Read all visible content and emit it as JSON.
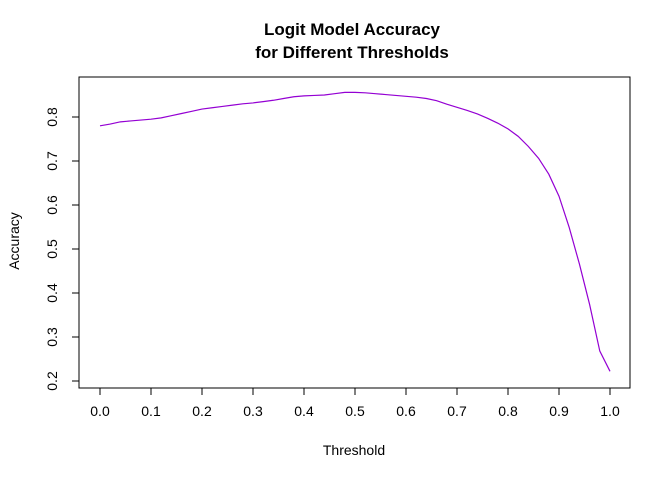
{
  "chart_data": {
    "type": "line",
    "title": "Logit Model Accuracy",
    "subtitle": "for Different Thresholds",
    "xlabel": "Threshold",
    "ylabel": "Accuracy",
    "xlim": [
      0.0,
      1.0
    ],
    "ylim": [
      0.2,
      0.86
    ],
    "x_ticks": [
      "0.0",
      "0.1",
      "0.2",
      "0.3",
      "0.4",
      "0.5",
      "0.6",
      "0.7",
      "0.8",
      "0.9",
      "1.0"
    ],
    "y_ticks": [
      "0.2",
      "0.3",
      "0.4",
      "0.5",
      "0.6",
      "0.7",
      "0.8"
    ],
    "grid": false,
    "line_color": "#9400D3",
    "series": [
      {
        "x": [
          0.0,
          0.02,
          0.04,
          0.06,
          0.08,
          0.1,
          0.12,
          0.14,
          0.16,
          0.18,
          0.2,
          0.22,
          0.24,
          0.26,
          0.28,
          0.3,
          0.32,
          0.34,
          0.36,
          0.38,
          0.4,
          0.42,
          0.44,
          0.46,
          0.48,
          0.5,
          0.52,
          0.54,
          0.56,
          0.58,
          0.6,
          0.62,
          0.64,
          0.66,
          0.68,
          0.7,
          0.72,
          0.74,
          0.76,
          0.78,
          0.8,
          0.82,
          0.84,
          0.86,
          0.88,
          0.9,
          0.92,
          0.94,
          0.96,
          0.98,
          1.0
        ],
        "values": [
          0.78,
          0.784,
          0.789,
          0.791,
          0.793,
          0.795,
          0.798,
          0.803,
          0.808,
          0.813,
          0.818,
          0.821,
          0.824,
          0.827,
          0.83,
          0.832,
          0.835,
          0.838,
          0.842,
          0.846,
          0.848,
          0.849,
          0.85,
          0.853,
          0.856,
          0.856,
          0.855,
          0.853,
          0.851,
          0.849,
          0.847,
          0.845,
          0.842,
          0.837,
          0.829,
          0.822,
          0.815,
          0.807,
          0.797,
          0.786,
          0.773,
          0.756,
          0.733,
          0.706,
          0.67,
          0.62,
          0.549,
          0.466,
          0.374,
          0.268,
          0.222
        ]
      }
    ]
  }
}
